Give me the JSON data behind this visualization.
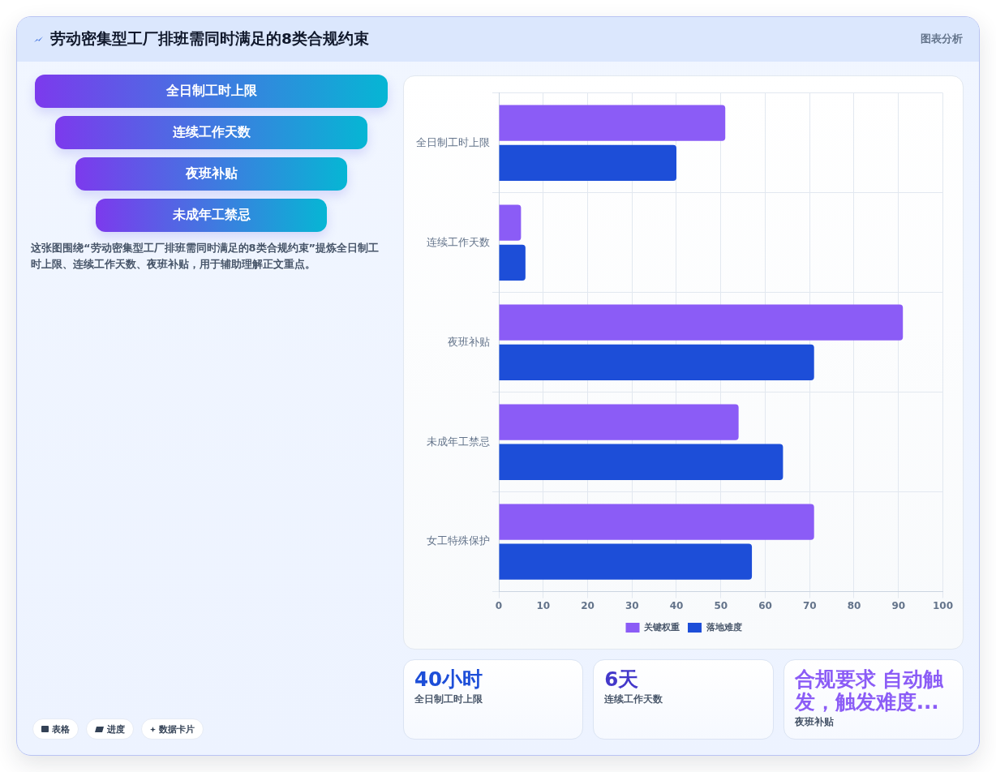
{
  "chart_data": [
    {
      "type": "other",
      "title": "劳动密集型工厂排班需同时满足的8类合规约束",
      "annotations": [
        "图表分析"
      ]
    },
    {
      "type": "other",
      "categories": [
        "全日制工时上限",
        "连续工作天数",
        "夜班补贴",
        "未成年工禁忌"
      ],
      "annotations": [
        "这张图围绕“劳动密集型工厂排班需同时满足的8类合规约束”提炼全日制工时上限、连续工作天数、夜班补贴，用于辅助理解正文重点。"
      ]
    },
    {
      "type": "bar",
      "orientation": "horizontal",
      "categories": [
        "全日制工时上限",
        "连续工作天数",
        "夜班补贴",
        "未成年工禁忌",
        "女工特殊保护"
      ],
      "series": [
        {
          "name": "关键权重",
          "color": "#8b5cf6",
          "values": [
            51,
            5,
            91,
            54,
            71
          ]
        },
        {
          "name": "落地难度",
          "color": "#1d4ed8",
          "values": [
            40,
            6,
            71,
            64,
            57
          ]
        }
      ],
      "xlim": [
        0,
        100
      ],
      "xticks": [
        0,
        10,
        20,
        30,
        40,
        50,
        60,
        70,
        80,
        90,
        100
      ],
      "grid": true,
      "legend": "bottom"
    },
    {
      "type": "other",
      "categories": [
        "全日制工时上限",
        "连续工作天数",
        "夜班补贴"
      ],
      "annotations": [
        "40小时",
        "6天",
        "合规要求 自动触发，触发难度..."
      ]
    },
    {
      "type": "other",
      "categories": [
        "表格",
        "进度",
        "数据卡片"
      ]
    }
  ]
}
